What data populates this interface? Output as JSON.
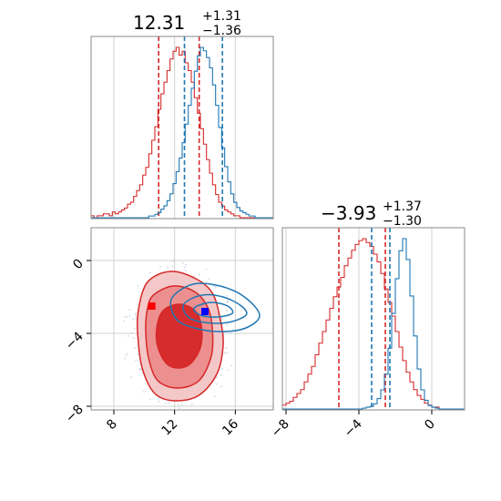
{
  "chart_data": [
    {
      "type": "histogram",
      "panel": "top-left",
      "title_main": "12.31",
      "title_sup": "+1.31",
      "title_sub": "−1.36",
      "xlim": [
        6.5,
        18.5
      ],
      "grid": true,
      "series": [
        {
          "color": "#d62728",
          "quantiles": [
            10.95,
            13.62
          ],
          "bin_start": 6.5,
          "bin_width": 0.2,
          "counts": [
            1,
            0,
            1,
            1,
            2,
            2,
            1,
            3,
            2,
            3,
            4,
            5,
            7,
            8,
            11,
            14,
            17,
            22,
            26,
            33,
            40,
            47,
            56,
            64,
            70,
            76,
            82,
            86,
            88,
            84,
            86,
            80,
            76,
            70,
            62,
            54,
            46,
            38,
            30,
            23,
            17,
            12,
            8,
            6,
            4,
            3,
            2,
            1,
            1,
            0,
            0,
            0,
            0,
            0,
            0,
            0,
            0,
            0,
            0,
            0
          ]
        },
        {
          "color": "#1f77b4",
          "quantiles": [
            12.65,
            15.15
          ],
          "bin_start": 6.5,
          "bin_width": 0.2,
          "counts": [
            0,
            0,
            0,
            0,
            0,
            0,
            0,
            0,
            0,
            0,
            0,
            0,
            0,
            0,
            0,
            0,
            0,
            0,
            0,
            1,
            1,
            2,
            3,
            5,
            7,
            10,
            14,
            20,
            27,
            35,
            44,
            55,
            66,
            76,
            86,
            95,
            100,
            98,
            94,
            88,
            78,
            66,
            53,
            41,
            30,
            21,
            14,
            9,
            6,
            4,
            3,
            2,
            1,
            1,
            0,
            0,
            0,
            0,
            0,
            0
          ]
        }
      ]
    },
    {
      "type": "contour",
      "panel": "bottom-left",
      "xlim": [
        6.5,
        18.5
      ],
      "ylim": [
        -8.2,
        1.8
      ],
      "grid": true,
      "series": [
        {
          "color": "#d62728",
          "marker": [
            10.5,
            -2.5
          ],
          "levels": [
            [
              [
                10.2,
                -1.2
              ],
              [
                11.7,
                -0.6
              ],
              [
                13.4,
                -1.0
              ],
              [
                14.5,
                -1.8
              ],
              [
                15.0,
                -3.2
              ],
              [
                15.2,
                -4.6
              ],
              [
                14.8,
                -6.2
              ],
              [
                13.6,
                -7.4
              ],
              [
                12.0,
                -7.7
              ],
              [
                10.7,
                -7.3
              ],
              [
                9.9,
                -6.0
              ],
              [
                9.6,
                -4.4
              ],
              [
                9.6,
                -2.8
              ]
            ],
            [
              [
                10.6,
                -1.9
              ],
              [
                11.9,
                -1.4
              ],
              [
                13.3,
                -1.7
              ],
              [
                14.2,
                -2.6
              ],
              [
                14.5,
                -3.9
              ],
              [
                14.4,
                -5.3
              ],
              [
                13.6,
                -6.6
              ],
              [
                12.2,
                -7.0
              ],
              [
                10.9,
                -6.6
              ],
              [
                10.3,
                -5.4
              ],
              [
                10.1,
                -3.9
              ],
              [
                10.2,
                -2.7
              ]
            ],
            [
              [
                11.2,
                -2.8
              ],
              [
                12.3,
                -2.4
              ],
              [
                13.4,
                -2.8
              ],
              [
                13.8,
                -3.9
              ],
              [
                13.6,
                -5.0
              ],
              [
                12.8,
                -5.8
              ],
              [
                11.7,
                -5.8
              ],
              [
                11.0,
                -5.0
              ],
              [
                10.8,
                -3.9
              ]
            ]
          ]
        },
        {
          "color": "#1f77b4",
          "marker": [
            14.0,
            -2.8
          ],
          "levels": [
            [
              [
                11.8,
                -2.1
              ],
              [
                13.2,
                -1.3
              ],
              [
                15.0,
                -1.4
              ],
              [
                16.6,
                -2.0
              ],
              [
                17.6,
                -3.0
              ],
              [
                16.7,
                -3.7
              ],
              [
                15.0,
                -3.9
              ],
              [
                13.3,
                -3.7
              ],
              [
                12.1,
                -3.2
              ]
            ],
            [
              [
                12.6,
                -2.4
              ],
              [
                13.8,
                -1.9
              ],
              [
                15.2,
                -2.0
              ],
              [
                16.4,
                -2.5
              ],
              [
                16.7,
                -3.0
              ],
              [
                15.5,
                -3.4
              ],
              [
                14.0,
                -3.4
              ],
              [
                12.9,
                -3.1
              ]
            ],
            [
              [
                13.3,
                -2.6
              ],
              [
                14.4,
                -2.3
              ],
              [
                15.5,
                -2.5
              ],
              [
                15.8,
                -2.9
              ],
              [
                14.8,
                -3.1
              ],
              [
                13.7,
                -3.0
              ]
            ]
          ]
        }
      ]
    },
    {
      "type": "histogram",
      "panel": "bottom-right",
      "title_main": "−3.93",
      "title_sup": "+1.37",
      "title_sub": "−1.30",
      "xlim": [
        -8.2,
        1.8
      ],
      "grid": true,
      "series": [
        {
          "color": "#d62728",
          "quantiles": [
            -5.1,
            -2.55
          ],
          "bin_start": -8.2,
          "bin_width": 0.2,
          "counts": [
            2,
            3,
            4,
            6,
            8,
            10,
            14,
            18,
            22,
            28,
            34,
            40,
            46,
            52,
            58,
            63,
            68,
            74,
            78,
            82,
            85,
            87,
            88,
            86,
            84,
            80,
            76,
            70,
            62,
            55,
            48,
            40,
            32,
            25,
            19,
            14,
            10,
            7,
            5,
            3,
            2,
            1,
            1,
            0,
            0,
            0,
            0,
            0,
            0,
            0
          ]
        },
        {
          "color": "#1f77b4",
          "quantiles": [
            -3.3,
            -2.3
          ],
          "bin_start": -8.2,
          "bin_width": 0.2,
          "counts": [
            0,
            0,
            0,
            0,
            0,
            0,
            0,
            0,
            0,
            0,
            0,
            0,
            0,
            0,
            0,
            0,
            0,
            0,
            0,
            0,
            0,
            0,
            1,
            2,
            3,
            6,
            12,
            22,
            40,
            70,
            110,
            150,
            182,
            196,
            172,
            130,
            84,
            46,
            22,
            10,
            4,
            2,
            1,
            0,
            0,
            0,
            0,
            0,
            0,
            0
          ]
        }
      ]
    }
  ],
  "axes": {
    "x_ticks_left": [
      "8",
      "12",
      "16"
    ],
    "x_tick_values_left": [
      8,
      12,
      16
    ],
    "y_ticks_left": [
      "0",
      "−4",
      "−8"
    ],
    "y_tick_values_left": [
      0,
      -4,
      -8
    ],
    "x_ticks_right": [
      "−8",
      "−4",
      "0"
    ],
    "x_tick_values_right": [
      -8,
      -4,
      0
    ]
  }
}
